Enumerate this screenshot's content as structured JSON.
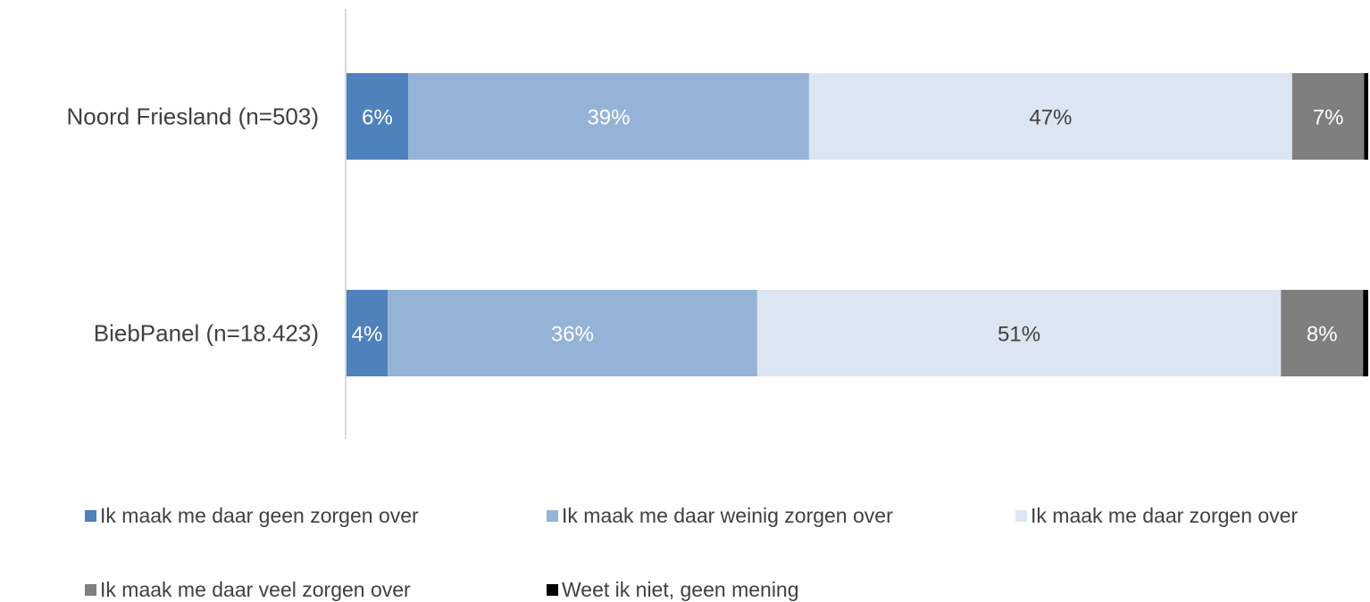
{
  "chart_data": {
    "type": "bar",
    "orientation": "horizontal",
    "stacked": true,
    "percent_stacked": true,
    "categories": [
      "Noord Friesland (n=503)",
      "BiebPanel (n=18.423)"
    ],
    "series": [
      {
        "name": "Ik maak me daar geen zorgen over",
        "color": "#4f81bd",
        "label_color": "#ffffff",
        "values": [
          6,
          4
        ],
        "labels": [
          "6%",
          "4%"
        ]
      },
      {
        "name": "Ik maak me daar weinig zorgen over",
        "color": "#95b3d7",
        "label_color": "#ffffff",
        "values": [
          39,
          36
        ],
        "labels": [
          "39%",
          "36%"
        ]
      },
      {
        "name": "Ik maak me daar zorgen over",
        "color": "#dce6f2",
        "label_color": "#404040",
        "values": [
          47,
          51
        ],
        "labels": [
          "47%",
          "51%"
        ]
      },
      {
        "name": "Ik maak me daar veel zorgen over",
        "color": "#7f7f7f",
        "label_color": "#ffffff",
        "values": [
          7,
          8
        ],
        "labels": [
          "7%",
          "8%"
        ]
      },
      {
        "name": "Weet ik niet, geen mening",
        "color": "#000000",
        "label_color": "#ffffff",
        "values": [
          0.4,
          0.5
        ],
        "labels": [
          "",
          ""
        ]
      }
    ],
    "xlim": [
      0,
      100
    ],
    "grid": false,
    "legend_position": "bottom"
  }
}
